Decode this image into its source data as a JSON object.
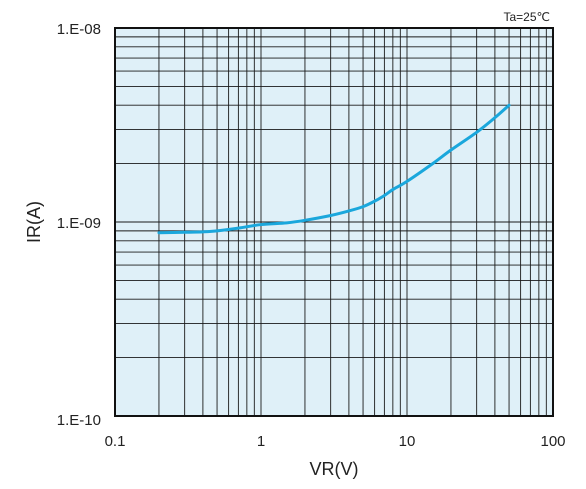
{
  "chart_data": {
    "type": "line",
    "title": "",
    "condition_label": "Ta=25℃",
    "xlabel": "VR(V)",
    "ylabel": "IR(A)",
    "x_scale": "log",
    "y_scale": "log",
    "xlim": [
      0.1,
      100
    ],
    "ylim": [
      1e-10,
      1e-08
    ],
    "x_tick_labels": [
      "0.1",
      "1",
      "10",
      "100"
    ],
    "y_tick_labels": [
      "1.E-10",
      "1.E-09",
      "1.E-08"
    ],
    "grid": true,
    "plot_background": "#dff0f8",
    "series": [
      {
        "color": "#1aa7dc",
        "x": [
          0.2,
          0.3,
          0.4,
          0.5,
          0.7,
          1.0,
          1.5,
          2.0,
          3.0,
          4.0,
          5.0,
          6.0,
          7.0,
          8.0,
          10.0,
          15.0,
          20.0,
          30.0,
          40.0,
          50.0
        ],
        "y": [
          8.8e-10,
          8.85e-10,
          8.9e-10,
          9e-10,
          9.3e-10,
          9.7e-10,
          9.9e-10,
          1.02e-09,
          1.08e-09,
          1.14e-09,
          1.2e-09,
          1.28e-09,
          1.37e-09,
          1.47e-09,
          1.62e-09,
          2e-09,
          2.35e-09,
          2.9e-09,
          3.45e-09,
          4e-09
        ]
      }
    ]
  }
}
